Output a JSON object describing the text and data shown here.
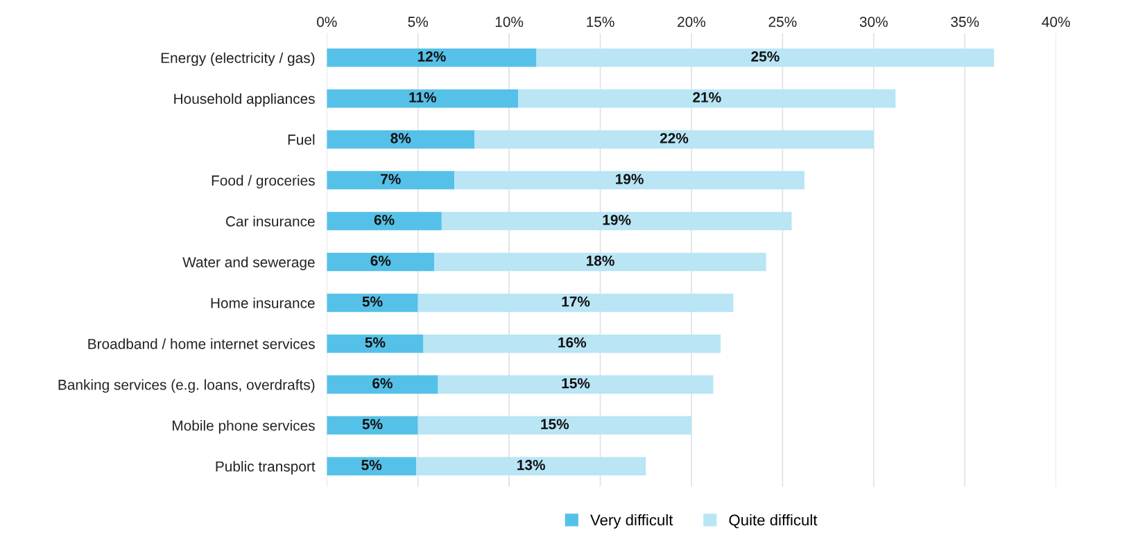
{
  "chart_data": {
    "type": "bar",
    "orientation": "horizontal",
    "stacked": true,
    "categories": [
      "Energy (electricity / gas)",
      "Household appliances",
      "Fuel",
      "Food / groceries",
      "Car insurance",
      "Water and sewerage",
      "Home insurance",
      "Broadband / home internet services",
      "Banking services (e.g. loans, overdrafts)",
      "Mobile phone services",
      "Public transport"
    ],
    "series": [
      {
        "name": "Very difficult",
        "color": "#56c1e8",
        "values": [
          11.5,
          10.5,
          8.1,
          7.0,
          6.3,
          5.9,
          5.0,
          5.3,
          6.1,
          5.0,
          4.9
        ],
        "value_labels": [
          "12%",
          "11%",
          "8%",
          "7%",
          "6%",
          "6%",
          "5%",
          "5%",
          "6%",
          "5%",
          "5%"
        ]
      },
      {
        "name": "Quite difficult",
        "color": "#b9e5f5",
        "values": [
          25.1,
          20.7,
          21.9,
          19.2,
          19.2,
          18.2,
          17.3,
          16.3,
          15.1,
          15.0,
          12.6
        ],
        "value_labels": [
          "25%",
          "21%",
          "22%",
          "19%",
          "19%",
          "18%",
          "17%",
          "16%",
          "15%",
          "15%",
          "13%"
        ]
      }
    ],
    "xlim": [
      0,
      40
    ],
    "xticks": [
      {
        "value": 0,
        "label": "0%"
      },
      {
        "value": 5,
        "label": "5%"
      },
      {
        "value": 10,
        "label": "10%"
      },
      {
        "value": 15,
        "label": "15%"
      },
      {
        "value": 20,
        "label": "20%"
      },
      {
        "value": 25,
        "label": "25%"
      },
      {
        "value": 30,
        "label": "30%"
      },
      {
        "value": 35,
        "label": "35%"
      },
      {
        "value": 40,
        "label": "40%"
      }
    ],
    "grid": "x",
    "legend": "bottom"
  }
}
